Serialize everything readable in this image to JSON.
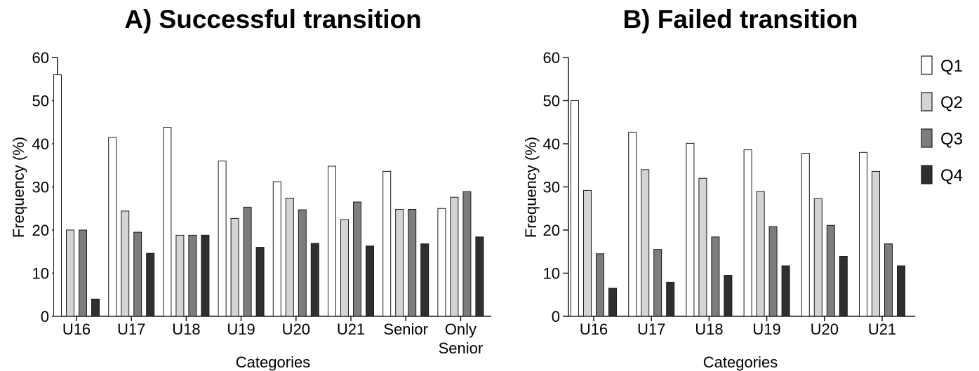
{
  "chart_data": [
    {
      "type": "bar",
      "title": "A) Successful transition",
      "xlabel": "Categories",
      "ylabel": "Frequency (%)",
      "ylim": [
        0,
        60
      ],
      "yticks": [
        "0",
        "10",
        "20",
        "30",
        "40",
        "50",
        "60"
      ],
      "categories": [
        "U16",
        "U17",
        "U18",
        "U19",
        "U20",
        "U21",
        "Senior",
        "Only Senior"
      ],
      "series": [
        {
          "name": "Q1",
          "values": [
            56,
            41.5,
            43.8,
            36,
            31.2,
            34.8,
            33.6,
            25
          ]
        },
        {
          "name": "Q2",
          "values": [
            20,
            24.4,
            18.8,
            22.7,
            27.4,
            22.4,
            24.8,
            27.6
          ]
        },
        {
          "name": "Q3",
          "values": [
            20,
            19.5,
            18.8,
            25.3,
            24.7,
            26.5,
            24.8,
            28.9
          ]
        },
        {
          "name": "Q4",
          "values": [
            4,
            14.6,
            18.8,
            16,
            16.9,
            16.3,
            16.8,
            18.4
          ]
        }
      ],
      "legend": "none",
      "grid": false
    },
    {
      "type": "bar",
      "title": "B) Failed transition",
      "xlabel": "Categories",
      "ylabel": "Frequency (%)",
      "ylim": [
        0,
        60
      ],
      "yticks": [
        "0",
        "10",
        "20",
        "30",
        "40",
        "50",
        "60"
      ],
      "categories": [
        "U16",
        "U17",
        "U18",
        "U19",
        "U20",
        "U21"
      ],
      "series": [
        {
          "name": "Q1",
          "values": [
            50,
            42.7,
            40.1,
            38.6,
            37.8,
            38
          ]
        },
        {
          "name": "Q2",
          "values": [
            29.2,
            34,
            32,
            28.9,
            27.3,
            33.6
          ]
        },
        {
          "name": "Q3",
          "values": [
            14.5,
            15.5,
            18.4,
            20.8,
            21.1,
            16.8
          ]
        },
        {
          "name": "Q4",
          "values": [
            6.5,
            7.9,
            9.5,
            11.7,
            13.9,
            11.7
          ]
        }
      ],
      "legend": "right",
      "grid": false
    }
  ],
  "colors": {
    "Q1": "#ffffff",
    "Q2": "#d4d4d4",
    "Q3": "#7d7d7d",
    "Q4": "#2f2f2f",
    "stroke": "#1a1a1a"
  }
}
